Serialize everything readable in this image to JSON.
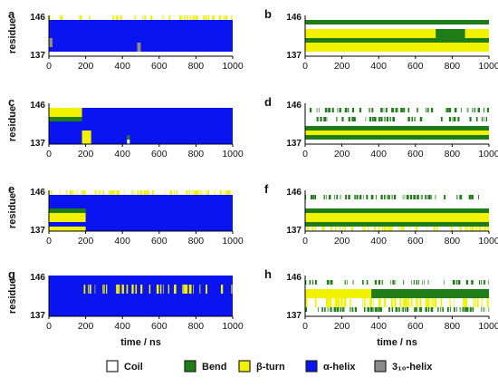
{
  "chart_data": {
    "type": "heatmap",
    "xlabel": "time / ns",
    "ylabel": "residue",
    "xlim": [
      0,
      1000
    ],
    "ylim": [
      137,
      146
    ],
    "xticks": [
      "0",
      "200",
      "400",
      "600",
      "800",
      "1000"
    ],
    "yticks": [
      "137",
      "146"
    ],
    "states": [
      "Coil",
      "Bend",
      "β-turn",
      "α-helix",
      "3₁₀-helix"
    ],
    "colors": {
      "Coil": "#ffffff",
      "Bend": "#1e7d16",
      "β-turn": "#f2f200",
      "α-helix": "#0a14f0",
      "3₁₀-helix": "#8c8c8c"
    },
    "legend": {
      "placement": "bottom"
    },
    "panels": [
      {
        "label": "a",
        "show_ylabel": true,
        "show_xlabel": false,
        "segments": [
          {
            "state": "α-helix",
            "from": 0,
            "to": 1000,
            "res_from": 138,
            "res_to": 145
          },
          {
            "state": "β-turn",
            "from": 0,
            "to": 230,
            "res_from": 145,
            "res_to": 146,
            "sparse": true
          },
          {
            "state": "β-turn",
            "from": 300,
            "to": 1000,
            "res_from": 145,
            "res_to": 146,
            "sparse": true
          },
          {
            "state": "3₁₀-helix",
            "from": 480,
            "to": 500,
            "res_from": 138,
            "res_to": 140
          },
          {
            "state": "3₁₀-helix",
            "from": 0,
            "to": 20,
            "res_from": 139,
            "res_to": 141
          }
        ]
      },
      {
        "label": "b",
        "show_ylabel": false,
        "show_xlabel": false,
        "segments": [
          {
            "state": "Bend",
            "from": 0,
            "to": 1000,
            "res_from": 144,
            "res_to": 145
          },
          {
            "state": "β-turn",
            "from": 0,
            "to": 1000,
            "res_from": 141,
            "res_to": 143
          },
          {
            "state": "Bend",
            "from": 0,
            "to": 1000,
            "res_from": 140,
            "res_to": 141
          },
          {
            "state": "β-turn",
            "from": 0,
            "to": 1000,
            "res_from": 138,
            "res_to": 140
          },
          {
            "state": "Bend",
            "from": 710,
            "to": 870,
            "res_from": 140,
            "res_to": 143
          }
        ]
      },
      {
        "label": "c",
        "show_ylabel": true,
        "show_xlabel": false,
        "segments": [
          {
            "state": "α-helix",
            "from": 0,
            "to": 1000,
            "res_from": 137,
            "res_to": 145
          },
          {
            "state": "β-turn",
            "from": 0,
            "to": 180,
            "res_from": 143,
            "res_to": 145
          },
          {
            "state": "Bend",
            "from": 0,
            "to": 180,
            "res_from": 142,
            "res_to": 143
          },
          {
            "state": "β-turn",
            "from": 180,
            "to": 230,
            "res_from": 137,
            "res_to": 140
          },
          {
            "state": "Coil",
            "from": 425,
            "to": 440,
            "res_from": 137,
            "res_to": 138
          },
          {
            "state": "Bend",
            "from": 425,
            "to": 440,
            "res_from": 138,
            "res_to": 139
          }
        ]
      },
      {
        "label": "d",
        "show_ylabel": false,
        "show_xlabel": false,
        "segments": [
          {
            "state": "Bend",
            "from": 0,
            "to": 1000,
            "res_from": 144,
            "res_to": 145,
            "sparse": true
          },
          {
            "state": "Bend",
            "from": 40,
            "to": 1000,
            "res_from": 142,
            "res_to": 143,
            "sparse": true
          },
          {
            "state": "Bend",
            "from": 0,
            "to": 1000,
            "res_from": 140,
            "res_to": 141
          },
          {
            "state": "β-turn",
            "from": 0,
            "to": 1000,
            "res_from": 139,
            "res_to": 140
          },
          {
            "state": "Bend",
            "from": 0,
            "to": 1000,
            "res_from": 138,
            "res_to": 139
          }
        ]
      },
      {
        "label": "e",
        "show_ylabel": true,
        "show_xlabel": false,
        "segments": [
          {
            "state": "α-helix",
            "from": 0,
            "to": 1000,
            "res_from": 137,
            "res_to": 145
          },
          {
            "state": "β-turn",
            "from": 0,
            "to": 1000,
            "res_from": 145,
            "res_to": 146,
            "sparse": true
          },
          {
            "state": "β-turn",
            "from": 0,
            "to": 200,
            "res_from": 139,
            "res_to": 141
          },
          {
            "state": "Bend",
            "from": 0,
            "to": 200,
            "res_from": 141,
            "res_to": 142
          },
          {
            "state": "β-turn",
            "from": 0,
            "to": 200,
            "res_from": 137,
            "res_to": 138
          }
        ]
      },
      {
        "label": "f",
        "show_ylabel": false,
        "show_xlabel": false,
        "segments": [
          {
            "state": "Bend",
            "from": 0,
            "to": 1000,
            "res_from": 144,
            "res_to": 145,
            "sparse": true
          },
          {
            "state": "Bend",
            "from": 0,
            "to": 1000,
            "res_from": 141,
            "res_to": 142
          },
          {
            "state": "β-turn",
            "from": 0,
            "to": 1000,
            "res_from": 139,
            "res_to": 141
          },
          {
            "state": "Bend",
            "from": 0,
            "to": 1000,
            "res_from": 138,
            "res_to": 139
          },
          {
            "state": "β-turn",
            "from": 0,
            "to": 1000,
            "res_from": 137,
            "res_to": 138,
            "sparse": true
          }
        ]
      },
      {
        "label": "g",
        "show_ylabel": true,
        "show_xlabel": true,
        "segments": [
          {
            "state": "α-helix",
            "from": 0,
            "to": 1000,
            "res_from": 137,
            "res_to": 146
          },
          {
            "state": "β-turn",
            "from": 190,
            "to": 1000,
            "res_from": 142,
            "res_to": 144,
            "sparse": true
          }
        ]
      },
      {
        "label": "h",
        "show_ylabel": false,
        "show_xlabel": true,
        "segments": [
          {
            "state": "Bend",
            "from": 0,
            "to": 1000,
            "res_from": 144,
            "res_to": 145,
            "sparse": true
          },
          {
            "state": "β-turn",
            "from": 0,
            "to": 360,
            "res_from": 141,
            "res_to": 143
          },
          {
            "state": "Bend",
            "from": 360,
            "to": 1000,
            "res_from": 141,
            "res_to": 143
          },
          {
            "state": "β-turn",
            "from": 0,
            "to": 1000,
            "res_from": 139,
            "res_to": 141,
            "sparse": true
          },
          {
            "state": "Bend",
            "from": 0,
            "to": 1000,
            "res_from": 138,
            "res_to": 139,
            "sparse": true
          }
        ]
      }
    ]
  }
}
